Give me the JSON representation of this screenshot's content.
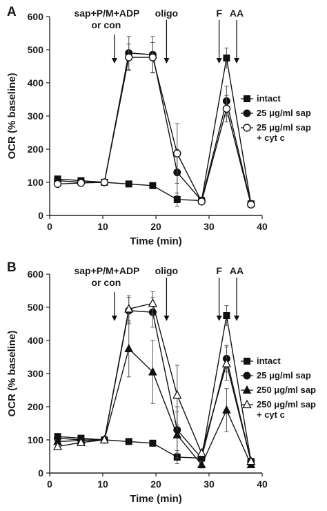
{
  "chart_data": [
    {
      "panel": "A",
      "type": "line",
      "xlabel": "Time (min)",
      "ylabel": "OCR (% baseline)",
      "xlim": [
        0,
        40
      ],
      "ylim": [
        0,
        600
      ],
      "xticks": [
        "0",
        "10",
        "20",
        "30",
        "40"
      ],
      "yticks": [
        "0",
        "100",
        "200",
        "300",
        "400",
        "500",
        "600"
      ],
      "x": [
        1.5,
        5.9,
        10.3,
        14.9,
        19.4,
        24.0,
        28.6,
        33.3,
        37.9
      ],
      "series": [
        {
          "name": "intact",
          "marker": "square-filled",
          "values": [
            110,
            105,
            100,
            95,
            90,
            48,
            45,
            475,
            35
          ],
          "err": [
            8,
            6,
            4,
            5,
            6,
            20,
            8,
            30,
            5
          ]
        },
        {
          "name": "25 μg/ml sap",
          "marker": "circle-filled",
          "values": [
            105,
            100,
            100,
            490,
            485,
            130,
            45,
            345,
            35
          ],
          "err": [
            6,
            6,
            4,
            50,
            55,
            70,
            8,
            45,
            5
          ]
        },
        {
          "name": "25 μg/ml sap + cyt c",
          "marker": "circle-open",
          "values": [
            95,
            98,
            100,
            477,
            477,
            187,
            42,
            322,
            33
          ],
          "err": [
            6,
            6,
            4,
            40,
            45,
            90,
            8,
            40,
            5
          ]
        }
      ],
      "legend": {
        "placement": "right",
        "entries": [
          [
            "intact"
          ],
          [
            "25 μg/ml sap"
          ],
          [
            "25 μg/ml sap",
            "+ cyt c"
          ]
        ]
      },
      "annotations": [
        {
          "lines": [
            "sap+P/M+ADP",
            "or con"
          ],
          "x": 12.2
        },
        {
          "lines": [
            "oligo"
          ],
          "x": 22.0
        },
        {
          "lines": [
            "F"
          ],
          "x": 31.9
        },
        {
          "lines": [
            "AA"
          ],
          "x": 35.2
        }
      ]
    },
    {
      "panel": "B",
      "type": "line",
      "xlabel": "Time (min)",
      "ylabel": "OCR (% baseline)",
      "xlim": [
        0,
        40
      ],
      "ylim": [
        0,
        600
      ],
      "xticks": [
        "0",
        "10",
        "20",
        "30",
        "40"
      ],
      "yticks": [
        "0",
        "100",
        "200",
        "300",
        "400",
        "500",
        "600"
      ],
      "x": [
        1.5,
        5.9,
        10.3,
        14.9,
        19.4,
        24.0,
        28.6,
        33.3,
        37.9
      ],
      "series": [
        {
          "name": "intact",
          "marker": "square-filled",
          "values": [
            110,
            105,
            100,
            95,
            90,
            48,
            45,
            475,
            35
          ],
          "err": [
            8,
            6,
            4,
            5,
            6,
            20,
            8,
            30,
            5
          ]
        },
        {
          "name": "25 μg/ml sap",
          "marker": "circle-filled",
          "values": [
            105,
            100,
            100,
            490,
            485,
            130,
            45,
            345,
            35
          ],
          "err": [
            6,
            6,
            4,
            40,
            45,
            70,
            8,
            40,
            5
          ]
        },
        {
          "name": "250 μg/ml sap",
          "marker": "triangle-filled",
          "values": [
            95,
            98,
            100,
            375,
            305,
            115,
            25,
            190,
            25
          ],
          "err": [
            6,
            6,
            4,
            85,
            95,
            70,
            10,
            65,
            5
          ]
        },
        {
          "name": "250 μg/ml sap + cyt c",
          "marker": "triangle-open",
          "values": [
            80,
            92,
            100,
            495,
            512,
            235,
            60,
            330,
            35
          ],
          "err": [
            6,
            6,
            4,
            40,
            35,
            90,
            10,
            50,
            5
          ]
        }
      ],
      "legend": {
        "placement": "right",
        "entries": [
          [
            "intact"
          ],
          [
            "25 μg/ml sap"
          ],
          [
            "250 μg/ml sap"
          ],
          [
            "250 μg/ml sap",
            "+ cyt c"
          ]
        ]
      },
      "annotations": [
        {
          "lines": [
            "sap+P/M+ADP",
            "or con"
          ],
          "x": 12.2
        },
        {
          "lines": [
            "oligo"
          ],
          "x": 22.0
        },
        {
          "lines": [
            "F"
          ],
          "x": 31.9
        },
        {
          "lines": [
            "AA"
          ],
          "x": 35.2
        }
      ]
    }
  ]
}
